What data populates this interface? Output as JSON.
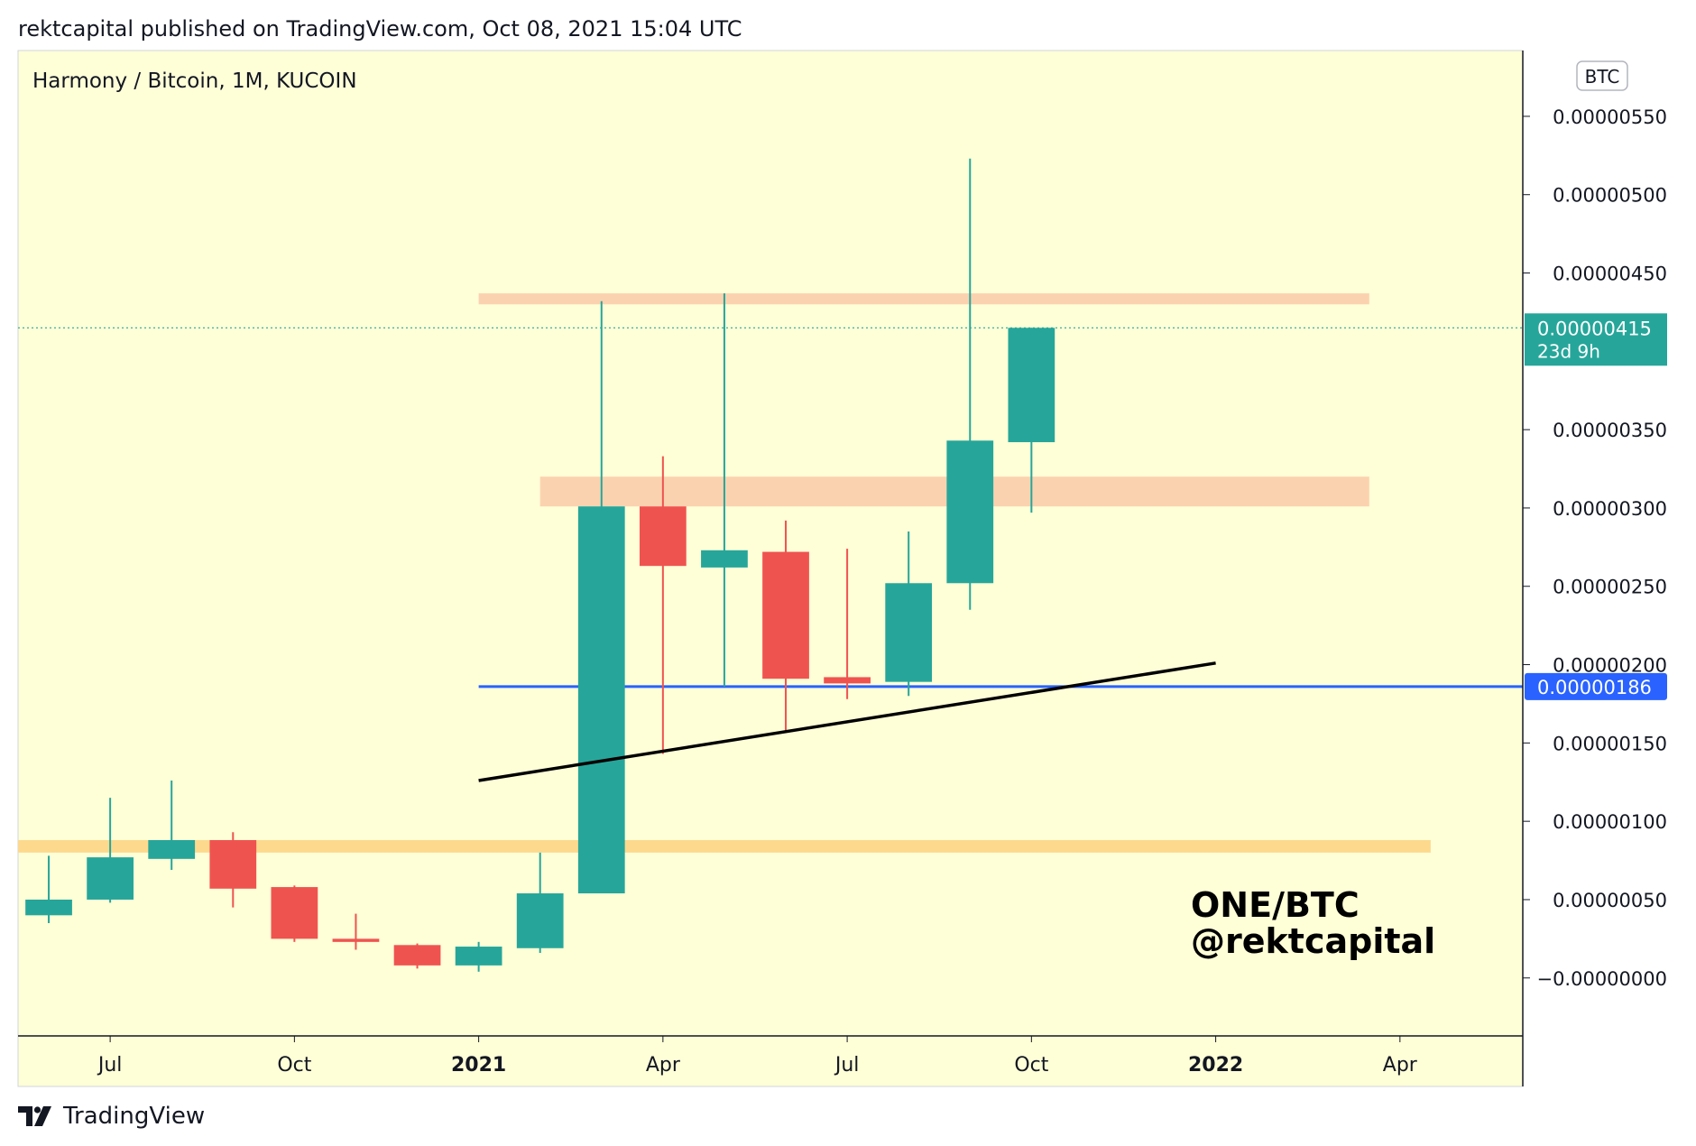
{
  "header": {
    "published": "rektcapital published on TradingView.com, Oct 08, 2021 15:04 UTC"
  },
  "footer": {
    "brand": "TradingView",
    "logo_icon": "tradingview-logo-icon"
  },
  "colors": {
    "background": "#fefed7",
    "bull": "#26a69a",
    "bear": "#ef5350",
    "resistance_zone": "#fbd2b0",
    "support_zone": "#fdd98e",
    "support_line": "#2962ff",
    "trendline": "#000000",
    "last_price": "#26a69a"
  },
  "chart_data": {
    "type": "candlestick",
    "symbol_label": "Harmony / Bitcoin, 1M, KUCOIN",
    "currency_badge": "BTC",
    "watermark": [
      "ONE/BTC",
      "@rektcapital"
    ],
    "x_tick_labels": [
      {
        "label": "Jul",
        "bold": false,
        "index": 1
      },
      {
        "label": "Oct",
        "bold": false,
        "index": 4
      },
      {
        "label": "2021",
        "bold": true,
        "index": 7
      },
      {
        "label": "Apr",
        "bold": false,
        "index": 10
      },
      {
        "label": "Jul",
        "bold": false,
        "index": 13
      },
      {
        "label": "Oct",
        "bold": false,
        "index": 16
      },
      {
        "label": "2022",
        "bold": true,
        "index": 19
      },
      {
        "label": "Apr",
        "bold": false,
        "index": 22
      }
    ],
    "y_ticks": [
      {
        "value": 0.0,
        "label": "−0.00000000"
      },
      {
        "value": 5e-07,
        "label": "0.00000050"
      },
      {
        "value": 1e-06,
        "label": "0.00000100"
      },
      {
        "value": 1.5e-06,
        "label": "0.00000150"
      },
      {
        "value": 2e-06,
        "label": "0.00000200"
      },
      {
        "value": 2.5e-06,
        "label": "0.00000250"
      },
      {
        "value": 3e-06,
        "label": "0.00000300"
      },
      {
        "value": 3.5e-06,
        "label": "0.00000350"
      },
      {
        "value": 4.5e-06,
        "label": "0.00000450"
      },
      {
        "value": 5e-06,
        "label": "0.00000500"
      },
      {
        "value": 5.5e-06,
        "label": "0.00000550"
      }
    ],
    "ylim": [
      -3.7e-07,
      5.92e-06
    ],
    "xlim": [
      -0.5,
      24.0
    ],
    "candles": [
      {
        "date": "2020-06",
        "open": 4e-07,
        "high": 7.8e-07,
        "low": 3.5e-07,
        "close": 5e-07
      },
      {
        "date": "2020-07",
        "open": 5e-07,
        "high": 1.15e-06,
        "low": 4.8e-07,
        "close": 7.7e-07
      },
      {
        "date": "2020-08",
        "open": 7.6e-07,
        "high": 1.26e-06,
        "low": 6.9e-07,
        "close": 8.8e-07
      },
      {
        "date": "2020-09",
        "open": 8.8e-07,
        "high": 9.3e-07,
        "low": 4.5e-07,
        "close": 5.7e-07
      },
      {
        "date": "2020-10",
        "open": 5.8e-07,
        "high": 5.9e-07,
        "low": 2.3e-07,
        "close": 2.5e-07
      },
      {
        "date": "2020-11",
        "open": 2.5e-07,
        "high": 4.1e-07,
        "low": 1.8e-07,
        "close": 2.3e-07
      },
      {
        "date": "2020-12",
        "open": 2.1e-07,
        "high": 2.2e-07,
        "low": 6e-08,
        "close": 8e-08
      },
      {
        "date": "2021-01",
        "open": 8e-08,
        "high": 2.3e-07,
        "low": 4e-08,
        "close": 2e-07
      },
      {
        "date": "2021-02",
        "open": 1.9e-07,
        "high": 8e-07,
        "low": 1.6e-07,
        "close": 5.4e-07
      },
      {
        "date": "2021-03",
        "open": 5.4e-07,
        "high": 4.32e-06,
        "low": 5.4e-07,
        "close": 3.01e-06
      },
      {
        "date": "2021-04",
        "open": 3.01e-06,
        "high": 3.33e-06,
        "low": 1.43e-06,
        "close": 2.63e-06
      },
      {
        "date": "2021-05",
        "open": 2.62e-06,
        "high": 4.37e-06,
        "low": 1.86e-06,
        "close": 2.73e-06
      },
      {
        "date": "2021-06",
        "open": 2.72e-06,
        "high": 2.92e-06,
        "low": 1.57e-06,
        "close": 1.91e-06
      },
      {
        "date": "2021-07",
        "open": 1.92e-06,
        "high": 2.74e-06,
        "low": 1.78e-06,
        "close": 1.88e-06
      },
      {
        "date": "2021-08",
        "open": 1.89e-06,
        "high": 2.85e-06,
        "low": 1.8e-06,
        "close": 2.52e-06
      },
      {
        "date": "2021-09",
        "open": 2.52e-06,
        "high": 5.23e-06,
        "low": 2.35e-06,
        "close": 3.43e-06
      },
      {
        "date": "2021-10",
        "open": 3.42e-06,
        "high": 4.15e-06,
        "low": 2.97e-06,
        "close": 4.15e-06
      }
    ],
    "zones": [
      {
        "name": "upper-resistance-zone",
        "from_index": 7,
        "to_index": 21.5,
        "low": 4.3e-06,
        "high": 4.37e-06,
        "color": "#fbd2b0"
      },
      {
        "name": "mid-resistance-zone",
        "from_index": 8,
        "to_index": 21.5,
        "low": 3.01e-06,
        "high": 3.2e-06,
        "color": "#fbd2b0"
      },
      {
        "name": "lower-support-zone",
        "from_index": -0.5,
        "to_index": 22.5,
        "low": 8e-07,
        "high": 8.8e-07,
        "color": "#fdd98e"
      }
    ],
    "horizontal_lines": [
      {
        "name": "support-line",
        "value": 1.86e-06,
        "from_index": 7,
        "label": "0.00000186",
        "color": "#2962ff"
      }
    ],
    "trendlines": [
      {
        "name": "ascending-trendline",
        "x1": 7,
        "y1": 1.26e-06,
        "x2": 19,
        "y2": 2.01e-06,
        "color": "#000000"
      }
    ],
    "last_price": {
      "value": 4.15e-06,
      "label": "0.00000415",
      "countdown": "23d 9h"
    }
  }
}
